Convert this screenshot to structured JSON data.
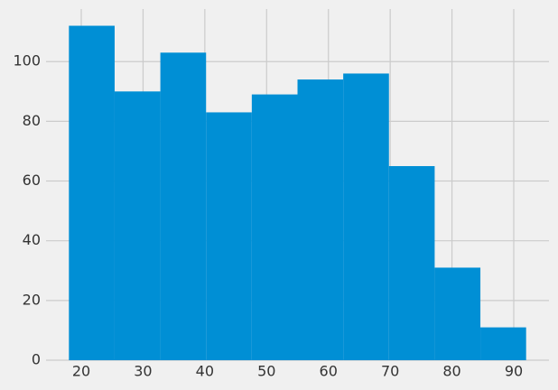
{
  "chart_data": {
    "type": "histogram",
    "bins": [
      18,
      25.4,
      32.8,
      40.2,
      47.6,
      55,
      62.4,
      69.8,
      77.2,
      84.6,
      92
    ],
    "values": [
      112,
      90,
      103,
      83,
      89,
      94,
      96,
      65,
      31,
      11
    ],
    "color": "#008fd5",
    "xlim": [
      14.3,
      95.7
    ],
    "ylim": [
      0,
      117.6
    ],
    "xticks": [
      20,
      30,
      40,
      50,
      60,
      70,
      80,
      90
    ],
    "yticks": [
      0,
      20,
      40,
      60,
      80,
      100
    ],
    "grid": true
  }
}
